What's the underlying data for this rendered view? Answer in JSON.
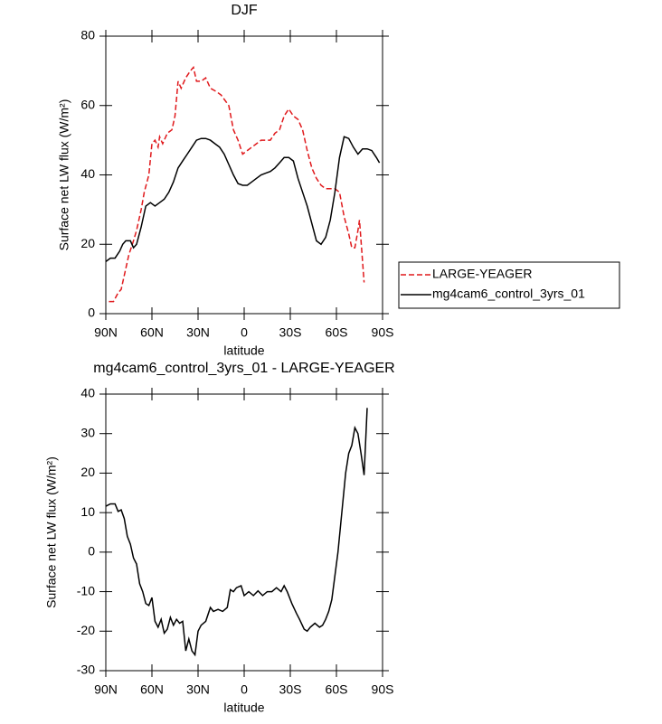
{
  "chart_data": [
    {
      "type": "line",
      "title": "DJF",
      "xlabel": "latitude",
      "ylabel": "Surface net LW flux (W/m²)",
      "xlim": [
        90,
        -90
      ],
      "xticks": [
        {
          "value": 90,
          "label": "90N"
        },
        {
          "value": 60,
          "label": "60N"
        },
        {
          "value": 30,
          "label": "30N"
        },
        0,
        {
          "value": -30,
          "label": "30S"
        },
        {
          "value": -60,
          "label": "60S"
        },
        {
          "value": -90,
          "label": "90S"
        }
      ],
      "ylim": [
        0,
        80
      ],
      "yticks": [
        0,
        20,
        40,
        60,
        80
      ],
      "legend": "right",
      "series": [
        {
          "name": "LARGE-YEAGER",
          "color": "#e0191c",
          "dash": true,
          "x": [
            88,
            85,
            82,
            80,
            77,
            75,
            72,
            70,
            67,
            65,
            62,
            60,
            58,
            56,
            55,
            53,
            50,
            47,
            45,
            43,
            41,
            38,
            35,
            33,
            31,
            28,
            25,
            22,
            18,
            15,
            10,
            7,
            4,
            1,
            -2,
            -5,
            -8,
            -11,
            -14,
            -17,
            -20,
            -23,
            -26,
            -29,
            -32,
            -35,
            -38,
            -41,
            -44,
            -47,
            -50,
            -53,
            -56,
            -59,
            -62,
            -65,
            -68,
            -70,
            -72,
            -74,
            -75,
            -77,
            -78
          ],
          "values": [
            3.5,
            3.5,
            6,
            7,
            13,
            17,
            21,
            24,
            30,
            35,
            40,
            49,
            50,
            48,
            51,
            49,
            52,
            53,
            57,
            67,
            65,
            68,
            70,
            71,
            67,
            67,
            68,
            65,
            64,
            63,
            60,
            53,
            50,
            46,
            47,
            48,
            49,
            50,
            50,
            50,
            52,
            53,
            57,
            59,
            57,
            56,
            53,
            47,
            42,
            39,
            37,
            36,
            36,
            36,
            35,
            28,
            23,
            19,
            19,
            24,
            27,
            15,
            9
          ]
        },
        {
          "name": "mg4cam6_control_3yrs_01",
          "color": "#000000",
          "dash": false,
          "x": [
            90,
            87,
            84,
            81,
            79,
            77,
            74,
            72,
            70,
            67,
            64,
            61,
            58,
            55,
            52,
            49,
            46,
            43,
            40,
            37,
            34,
            31,
            28,
            25,
            22,
            19,
            16,
            13,
            10,
            7,
            4,
            1,
            -2,
            -5,
            -8,
            -11,
            -14,
            -17,
            -20,
            -23,
            -26,
            -29,
            -32,
            -35,
            -38,
            -41,
            -44,
            -47,
            -50,
            -53,
            -56,
            -59,
            -62,
            -65,
            -68,
            -71,
            -74,
            -77,
            -80,
            -83,
            -86,
            -88
          ],
          "values": [
            15,
            16,
            16,
            18,
            20,
            21,
            21,
            19,
            20,
            25,
            31,
            32,
            31,
            32,
            33,
            35,
            38,
            42,
            44,
            46,
            48,
            50,
            50.5,
            50.5,
            50,
            49,
            48,
            46,
            43,
            40,
            37.5,
            37,
            37,
            38,
            39,
            40,
            40.5,
            41,
            42,
            43.5,
            45,
            45,
            44,
            39,
            35,
            31,
            26,
            21,
            20,
            22,
            27,
            35,
            45,
            51,
            50.5,
            48,
            46,
            47.5,
            47.5,
            47,
            45,
            43.5
          ]
        }
      ]
    },
    {
      "type": "line",
      "title": "mg4cam6_control_3yrs_01 - LARGE-YEAGER",
      "xlabel": "latitude",
      "ylabel": "Surface net LW flux (W/m²)",
      "xlim": [
        90,
        -90
      ],
      "xticks": [
        {
          "value": 90,
          "label": "90N"
        },
        {
          "value": 60,
          "label": "60N"
        },
        {
          "value": 30,
          "label": "30N"
        },
        0,
        {
          "value": -30,
          "label": "30S"
        },
        {
          "value": -60,
          "label": "60S"
        },
        {
          "value": -90,
          "label": "90S"
        }
      ],
      "ylim": [
        -30,
        40
      ],
      "yticks": [
        -30,
        -20,
        -10,
        0,
        10,
        20,
        30,
        40
      ],
      "series": [
        {
          "color": "#000000",
          "dash": false,
          "x": [
            90,
            87,
            84,
            82,
            80,
            78,
            76,
            74,
            72,
            70,
            68,
            66,
            64,
            62,
            60,
            58,
            56,
            54,
            52,
            50,
            48,
            46,
            44,
            42,
            40,
            38,
            36,
            34,
            32,
            30,
            28,
            25,
            22,
            20,
            17,
            14,
            11,
            9,
            7,
            5,
            2,
            0,
            -3,
            -6,
            -9,
            -12,
            -15,
            -18,
            -21,
            -24,
            -26,
            -28,
            -31,
            -34,
            -36,
            -39,
            -41,
            -43,
            -46,
            -49,
            -51,
            -53,
            -55,
            -57,
            -59,
            -61,
            -63,
            -64,
            -66,
            -68,
            -70,
            -72,
            -74,
            -76,
            -78,
            -80
          ],
          "values": [
            11.6,
            12.2,
            12.2,
            10.3,
            10.7,
            8.5,
            4,
            2,
            -1.5,
            -3,
            -8,
            -10,
            -13,
            -13.5,
            -11.5,
            -17.5,
            -19,
            -17,
            -20.5,
            -19.5,
            -16.5,
            -18.5,
            -17,
            -18,
            -17.5,
            -25,
            -22,
            -25,
            -26,
            -20,
            -18.5,
            -17.5,
            -14,
            -15,
            -14.5,
            -15,
            -14,
            -9.5,
            -10,
            -9,
            -8.5,
            -11,
            -10,
            -11,
            -9.8,
            -11,
            -10,
            -10,
            -9,
            -10,
            -8.5,
            -10,
            -13,
            -15.5,
            -17,
            -19.5,
            -20,
            -19,
            -18,
            -19,
            -18.5,
            -17,
            -15,
            -12,
            -6,
            0,
            8,
            12,
            20,
            25,
            27,
            31.5,
            30,
            25,
            19.5,
            36.5
          ]
        }
      ]
    }
  ]
}
